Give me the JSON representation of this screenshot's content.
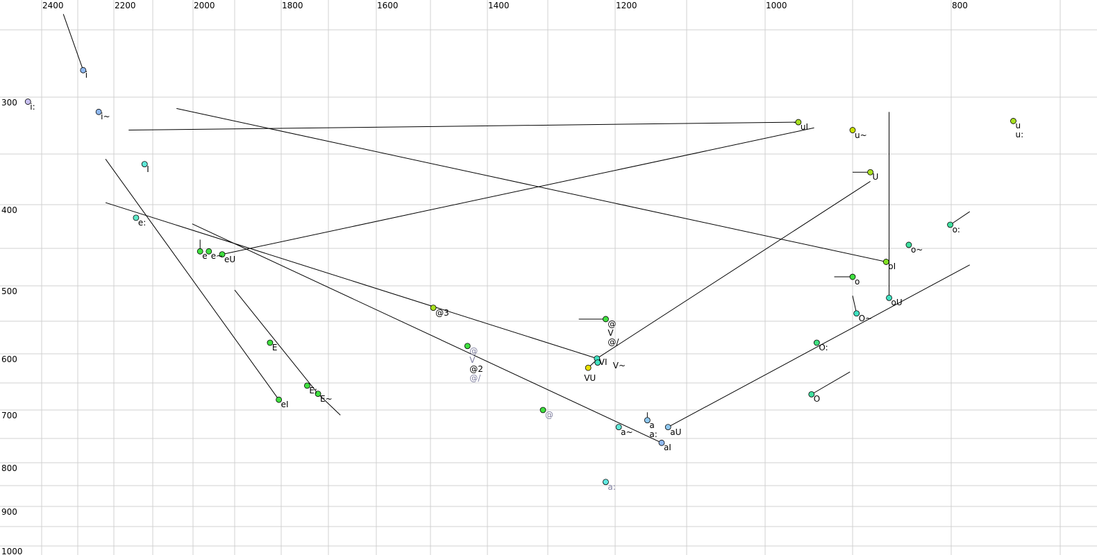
{
  "chart_data": {
    "type": "scatter",
    "title": "",
    "xlabel": "",
    "ylabel": "",
    "x_axis": {
      "reversed": true,
      "scale": "nonlinear",
      "ticks": [
        2400,
        2200,
        2000,
        1800,
        1600,
        1400,
        1200,
        1000,
        800
      ],
      "grid_step": 100
    },
    "y_axis": {
      "reversed": false,
      "scale": "nonlinear",
      "ticks": [
        300,
        400,
        500,
        600,
        700,
        800,
        900,
        1000
      ],
      "grid_step": 50
    },
    "grid": true,
    "line_color": "#000000",
    "points": [
      {
        "labels": [
          "i"
        ],
        "x": 2285,
        "y": 280,
        "color": "#8fb8f0",
        "line_from": [
          2340,
          239
        ]
      },
      {
        "labels": [
          "i:"
        ],
        "x": 2438,
        "y": 304,
        "color": "#c8c0f0"
      },
      {
        "labels": [
          "i~"
        ],
        "x": 2242,
        "y": 313,
        "color": "#8fb8f0"
      },
      {
        "labels": [
          "I"
        ],
        "x": 2121,
        "y": 360,
        "color": "#60e8d8"
      },
      {
        "labels": [
          "e:"
        ],
        "x": 2143,
        "y": 415,
        "color": "#60e8c8"
      },
      {
        "labels": [
          "e"
        ],
        "x": 1983,
        "y": 454,
        "color": "#40e040",
        "line_from": [
          1983,
          440
        ]
      },
      {
        "labels": [
          "e~"
        ],
        "x": 1962,
        "y": 454,
        "color": "#40e040"
      },
      {
        "labels": [
          "eU"
        ],
        "x": 1930,
        "y": 458,
        "color": "#40e040",
        "line_to": [
          944,
          327
        ]
      },
      {
        "labels": [
          "uI"
        ],
        "x": 962,
        "y": 322,
        "color": "#a8e020",
        "line_from": [
          2162,
          329
        ]
      },
      {
        "labels": [
          "u~"
        ],
        "x": 900,
        "y": 329,
        "color": "#c8e000"
      },
      {
        "labels": [
          "U"
        ],
        "x": 882,
        "y": 368,
        "color": "#a8e020",
        "line_from": [
          900,
          368
        ]
      },
      {
        "labels": [
          "u",
          "u:"
        ],
        "x": 743,
        "y": 321,
        "color": "#a8e020"
      },
      {
        "labels": [
          "oI"
        ],
        "x": 866,
        "y": 468,
        "color": "#80e020",
        "line_from": [
          2041,
          310
        ]
      },
      {
        "labels": [
          "o:"
        ],
        "x": 801,
        "y": 423,
        "color": "#40e0a0",
        "line_to": [
          783,
          408
        ]
      },
      {
        "labels": [
          "o~"
        ],
        "x": 843,
        "y": 446,
        "color": "#40e0a0"
      },
      {
        "labels": [
          "o"
        ],
        "x": 900,
        "y": 488,
        "color": "#40e040",
        "line_from": [
          921,
          488
        ]
      },
      {
        "labels": [
          "oU"
        ],
        "x": 863,
        "y": 517,
        "color": "#40e0c0",
        "line_from": [
          863,
          313
        ]
      },
      {
        "labels": [
          "O~"
        ],
        "x": 896,
        "y": 539,
        "color": "#40e0c0",
        "line_from": [
          900,
          514
        ]
      },
      {
        "labels": [
          "O:"
        ],
        "x": 941,
        "y": 583,
        "color": "#40e080"
      },
      {
        "labels": [
          "O"
        ],
        "x": 947,
        "y": 671,
        "color": "#40e0a0",
        "line_to": [
          903,
          631
        ]
      },
      {
        "labels": [
          "@3"
        ],
        "x": 1495,
        "y": 531,
        "color": "#a8e020"
      },
      {
        "labels": [
          "@",
          "V",
          "@/"
        ],
        "x": 1214,
        "y": 547,
        "color": "#40e040",
        "line_from": [
          1254,
          547
        ]
      },
      {
        "labels": [
          "VI"
        ],
        "x": 1227,
        "y": 608,
        "color": "#40e0c0",
        "line_from": [
          2223,
          398
        ],
        "line_to": [
          882,
          377
        ]
      },
      {
        "labels": [
          "V~"
        ],
        "x": 1226,
        "y": 615,
        "color": "#40e0c0"
      },
      {
        "labels": [
          "VU"
        ],
        "x": 1240,
        "y": 624,
        "color": "#e8e000",
        "line_to": [
          1230,
          613
        ]
      },
      {
        "labels": [
          "@",
          "V",
          "@2",
          "@/"
        ],
        "label_colors": [
          "#8080a0",
          "#8080a0",
          "#000000",
          "#8080a0"
        ],
        "x": 1435,
        "y": 588,
        "color": "#40e040"
      },
      {
        "labels": [
          "@"
        ],
        "label_colors": [
          "#8080a0"
        ],
        "x": 1308,
        "y": 700,
        "color": "#40e040"
      },
      {
        "labels": [
          "a~"
        ],
        "x": 1195,
        "y": 730,
        "color": "#60e8d8"
      },
      {
        "labels": [
          "a",
          "a:"
        ],
        "x": 1155,
        "y": 718,
        "color": "#8fc8f0",
        "line_from": [
          1155,
          704
        ]
      },
      {
        "labels": [
          "aI"
        ],
        "x": 1135,
        "y": 759,
        "color": "#8fb8f0",
        "line_from": [
          2002,
          422
        ]
      },
      {
        "labels": [
          "aU"
        ],
        "x": 1126,
        "y": 730,
        "color": "#8fc8f0",
        "line_to": [
          783,
          472
        ]
      },
      {
        "labels": [
          "a:"
        ],
        "label_colors": [
          "#8080a0"
        ],
        "x": 1214,
        "y": 842,
        "color": "#60e8e0"
      },
      {
        "labels": [
          "E"
        ],
        "x": 1824,
        "y": 583,
        "color": "#40e040"
      },
      {
        "labels": [
          "E:"
        ],
        "x": 1745,
        "y": 655,
        "color": "#40e040"
      },
      {
        "labels": [
          "E~"
        ],
        "x": 1722,
        "y": 670,
        "color": "#40e040",
        "line_from": [
          1900,
          506
        ],
        "line_to": [
          1675,
          709
        ]
      },
      {
        "labels": [
          "eI"
        ],
        "x": 1805,
        "y": 681,
        "color": "#40e040",
        "line_from": [
          2223,
          355
        ]
      }
    ]
  }
}
